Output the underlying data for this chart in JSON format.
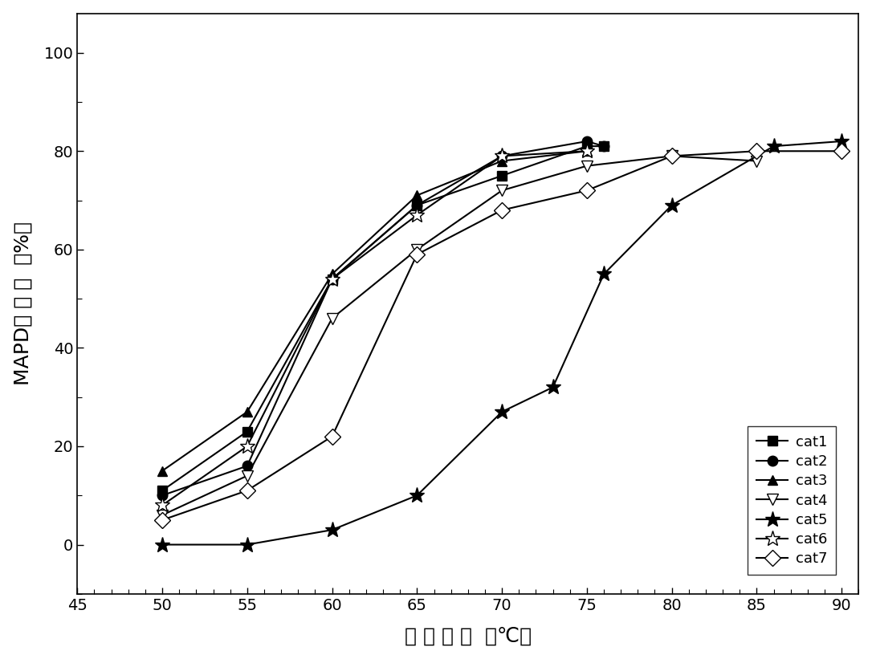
{
  "series": {
    "cat1": {
      "x": [
        50,
        55,
        60,
        65,
        70,
        75,
        76
      ],
      "y": [
        11,
        23,
        54,
        69,
        75,
        81,
        81
      ],
      "marker": "s",
      "label": "cat1",
      "fillstyle": "full",
      "markersize": 8
    },
    "cat2": {
      "x": [
        50,
        55,
        60,
        65,
        70,
        75,
        76
      ],
      "y": [
        10,
        16,
        54,
        69,
        79,
        82,
        81
      ],
      "marker": "o",
      "label": "cat2",
      "fillstyle": "full",
      "markersize": 9
    },
    "cat3": {
      "x": [
        50,
        55,
        60,
        65,
        70,
        75
      ],
      "y": [
        15,
        27,
        55,
        71,
        78,
        80
      ],
      "marker": "^",
      "label": "cat3",
      "fillstyle": "full",
      "markersize": 9
    },
    "cat4": {
      "x": [
        50,
        55,
        60,
        65,
        70,
        75,
        80,
        85
      ],
      "y": [
        6,
        14,
        46,
        60,
        72,
        77,
        79,
        78
      ],
      "marker": "v",
      "label": "cat4",
      "fillstyle": "none",
      "markersize": 10
    },
    "cat5": {
      "x": [
        50,
        55,
        60,
        65,
        70,
        73,
        76,
        80,
        86,
        90
      ],
      "y": [
        0,
        0,
        3,
        10,
        27,
        32,
        55,
        69,
        81,
        82
      ],
      "marker": "*",
      "label": "cat5",
      "fillstyle": "full",
      "markersize": 14
    },
    "cat6": {
      "x": [
        50,
        55,
        60,
        65,
        70,
        75
      ],
      "y": [
        8,
        20,
        54,
        67,
        79,
        80
      ],
      "marker": "*",
      "label": "cat6",
      "fillstyle": "none",
      "markersize": 14
    },
    "cat7": {
      "x": [
        50,
        55,
        60,
        65,
        70,
        75,
        80,
        85,
        90
      ],
      "y": [
        5,
        11,
        22,
        59,
        68,
        72,
        79,
        80,
        80
      ],
      "marker": "D",
      "label": "cat7",
      "fillstyle": "none",
      "markersize": 10
    }
  },
  "xlabel_parts": [
    "反 应 温 度  （℃）"
  ],
  "ylabel_parts": [
    "MAPD转 化 率  （%）"
  ],
  "xlim": [
    45,
    91
  ],
  "ylim": [
    -10,
    108
  ],
  "xticks": [
    45,
    50,
    55,
    60,
    65,
    70,
    75,
    80,
    85,
    90
  ],
  "xticklabels": [
    "45",
    "50",
    "55",
    "60",
    "65",
    "70",
    "75",
    "80",
    "85",
    "90"
  ],
  "yticks": [
    0,
    20,
    40,
    60,
    80,
    100
  ],
  "yticklabels": [
    "0",
    "20",
    "40",
    "60",
    "80",
    "100"
  ],
  "background_color": "#ffffff",
  "line_color": "#000000",
  "linewidth": 1.5,
  "tick_fontsize": 14,
  "label_fontsize": 18,
  "legend_fontsize": 13
}
